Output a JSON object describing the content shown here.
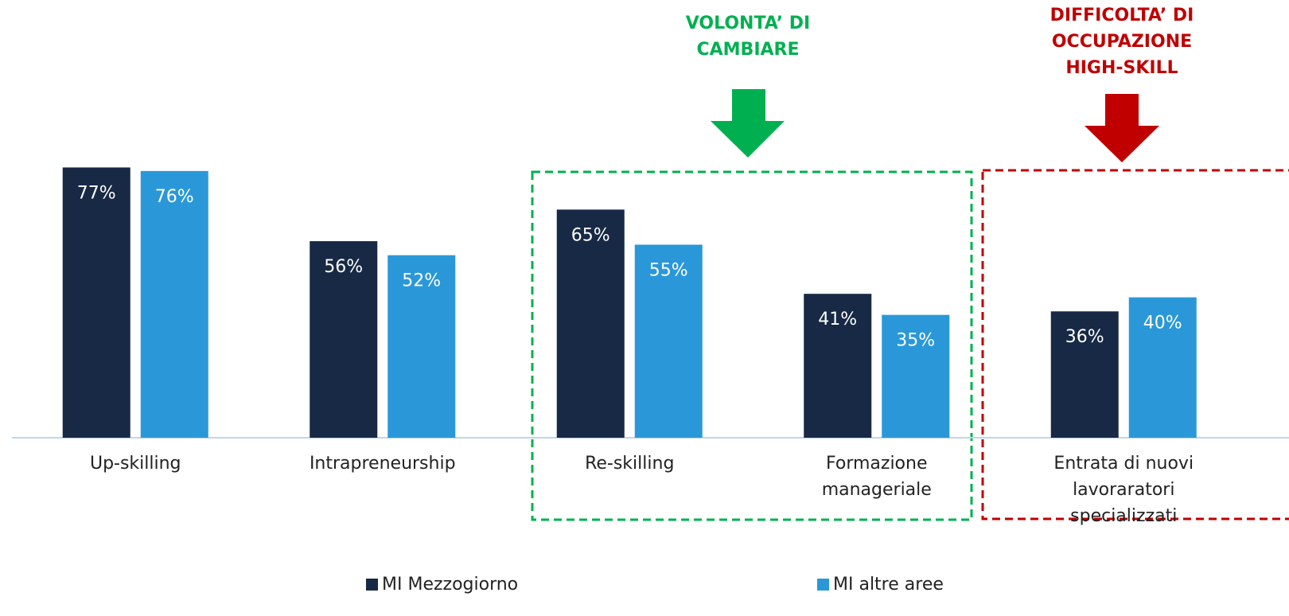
{
  "chart_data": {
    "type": "bar",
    "categories": [
      "Up-skilling",
      "Intrapreneurship",
      "Re-skilling",
      "Formazione\nmanageriale",
      "Entrata di nuovi\nlavoraratori specializzati"
    ],
    "series": [
      {
        "name": "MI Mezzogiorno",
        "color": "#172944",
        "values": [
          77,
          56,
          65,
          41,
          36
        ],
        "value_labels": [
          "77%",
          "56%",
          "65%",
          "41%",
          "36%"
        ]
      },
      {
        "name": "MI altre aree",
        "color": "#2a98d8",
        "values": [
          76,
          52,
          55,
          35,
          40
        ],
        "value_labels": [
          "76%",
          "52%",
          "55%",
          "35%",
          "40%"
        ]
      }
    ],
    "ylim": [
      0,
      100
    ],
    "annotations": [
      {
        "text": "VOLONTA’ DI\nCAMBIARE",
        "color": "#00b050"
      },
      {
        "text": "DIFFICOLTA’ DI\nOCCUPAZIONE\nHIGH-SKILL",
        "color": "#c00000"
      }
    ]
  }
}
